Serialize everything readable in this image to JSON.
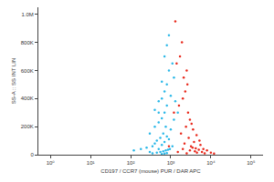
{
  "chart_data": {
    "type": "scatter",
    "x_label": "CD197 / CCR7 (mouse) PUR / DAR APC",
    "y_label": "SS-A :: SS INT LIN",
    "log": "x",
    "grid": false,
    "marker": "circle",
    "xlim": [
      0.5,
      200000
    ],
    "xticks": [
      {
        "value": 1,
        "label": "10⁰"
      },
      {
        "value": 10,
        "label": "10¹"
      },
      {
        "value": 100,
        "label": "10²"
      },
      {
        "value": 1000,
        "label": "10³"
      },
      {
        "value": 10000,
        "label": "10⁴"
      },
      {
        "value": 100000,
        "label": "10⁵"
      }
    ],
    "ylim": [
      0,
      1050000
    ],
    "yticks": [
      0,
      {
        "value": 200000,
        "label": "200K"
      },
      {
        "value": 400000,
        "label": "400K"
      },
      {
        "value": 600000,
        "label": "600K"
      },
      {
        "value": 800000,
        "label": "800K"
      },
      {
        "value": 1000000,
        "label": "1.0M"
      }
    ],
    "series": [
      {
        "color": "#2bb8e8",
        "x": [
          120,
          180,
          250,
          300,
          350,
          400,
          450,
          500,
          550,
          600,
          650,
          700,
          750,
          800,
          900,
          1000,
          1100,
          1200,
          300,
          400,
          500,
          600,
          700,
          800,
          350,
          450,
          550,
          650,
          750,
          850,
          950,
          500,
          600,
          700,
          800,
          900,
          400,
          500,
          600,
          700,
          800,
          1000,
          1200,
          900,
          1100,
          600,
          700,
          800,
          1500,
          1300
        ],
        "values": [
          30000,
          40000,
          50000,
          20000,
          60000,
          80000,
          100000,
          40000,
          120000,
          70000,
          150000,
          90000,
          200000,
          130000,
          110000,
          180000,
          60000,
          250000,
          150000,
          200000,
          230000,
          260000,
          300000,
          350000,
          10000,
          15000,
          20000,
          25000,
          30000,
          35000,
          40000,
          300000,
          400000,
          450000,
          500000,
          600000,
          320000,
          380000,
          520000,
          700000,
          780000,
          420000,
          550000,
          850000,
          650000,
          5000,
          8000,
          12000,
          300000,
          380000
        ]
      },
      {
        "color": "#e8291c",
        "x": [
          1500,
          2000,
          2500,
          3000,
          3500,
          4000,
          4500,
          5000,
          6000,
          7000,
          8000,
          10000,
          12000,
          2200,
          2800,
          3200,
          3800,
          4200,
          5500,
          6500,
          1800,
          2400,
          3000,
          3600,
          4400,
          5200,
          900,
          1200,
          1600,
          2000,
          2600,
          1400,
          1700,
          2100,
          1900,
          2300,
          2700,
          1300,
          3300,
          2500
        ],
        "values": [
          20000,
          40000,
          10000,
          30000,
          50000,
          25000,
          15000,
          35000,
          20000,
          10000,
          30000,
          15000,
          8000,
          80000,
          120000,
          60000,
          90000,
          45000,
          70000,
          40000,
          150000,
          200000,
          250000,
          180000,
          140000,
          100000,
          60000,
          300000,
          350000,
          400000,
          500000,
          650000,
          700000,
          550000,
          800000,
          450000,
          300000,
          950000,
          220000,
          600000
        ]
      }
    ]
  }
}
